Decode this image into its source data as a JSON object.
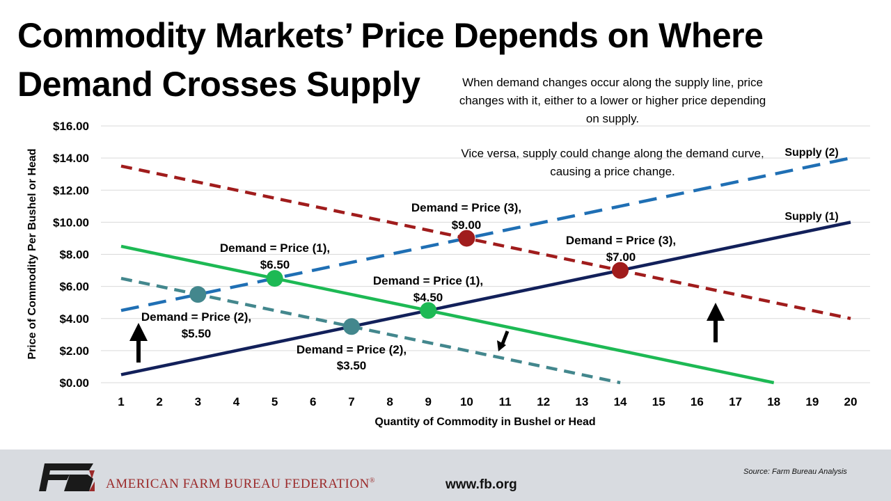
{
  "title": {
    "line1": "Commodity Markets’ Price Depends on Where",
    "line2": "Demand Crosses Supply"
  },
  "notes": {
    "note1": "When demand changes occur along the supply line, price changes with it, either to a lower or higher price depending on supply.",
    "note2": "Vice versa, supply could change along the demand curve, causing a price change."
  },
  "chart_data": {
    "type": "line",
    "xlabel": "Quantity of Commodity in Bushel or Head",
    "ylabel": "Price of Commodity Per Bushel or Head",
    "xlim": [
      1,
      20
    ],
    "ylim": [
      0,
      16
    ],
    "x_ticks": [
      "1",
      "2",
      "3",
      "4",
      "5",
      "6",
      "7",
      "8",
      "9",
      "10",
      "11",
      "12",
      "13",
      "14",
      "15",
      "16",
      "17",
      "18",
      "19",
      "20"
    ],
    "y_ticks": [
      "$0.00",
      "$2.00",
      "$4.00",
      "$6.00",
      "$8.00",
      "$10.00",
      "$12.00",
      "$14.00",
      "$16.00"
    ],
    "grid": "horizontal",
    "series": [
      {
        "name": "Supply (1)",
        "color": "#12205a",
        "dash": "solid",
        "points": [
          [
            1,
            0.5
          ],
          [
            20,
            10
          ]
        ]
      },
      {
        "name": "Supply (2)",
        "color": "#1f6fb4",
        "dash": "dashed",
        "points": [
          [
            1,
            4.5
          ],
          [
            20,
            14
          ]
        ]
      },
      {
        "name": "",
        "color": "#1db954",
        "dash": "solid",
        "points": [
          [
            1,
            8.5
          ],
          [
            18,
            0
          ]
        ]
      },
      {
        "name": "",
        "color": "#43878d",
        "dash": "dashed",
        "points": [
          [
            1,
            6.5
          ],
          [
            14,
            0
          ]
        ]
      },
      {
        "name": "",
        "color": "#a01c1c",
        "dash": "dashed",
        "points": [
          [
            1,
            13.5
          ],
          [
            20,
            4
          ]
        ]
      }
    ],
    "points": [
      {
        "x": 5,
        "y": 6.5,
        "color": "#1db954",
        "label_line1": "Demand = Price (1),",
        "label_line2": "$6.50"
      },
      {
        "x": 9,
        "y": 4.5,
        "color": "#1db954",
        "label_line1": "Demand = Price (1),",
        "label_line2": "$4.50"
      },
      {
        "x": 3,
        "y": 5.5,
        "color": "#43878d",
        "label_line1": "Demand = Price (2),",
        "label_line2": "$5.50"
      },
      {
        "x": 7,
        "y": 3.5,
        "color": "#43878d",
        "label_line1": "Demand = Price (2),",
        "label_line2": "$3.50"
      },
      {
        "x": 10,
        "y": 9.0,
        "color": "#a01c1c",
        "label_line1": "Demand = Price (3),",
        "label_line2": "$9.00"
      },
      {
        "x": 14,
        "y": 7.0,
        "color": "#a01c1c",
        "label_line1": "Demand = Price (3),",
        "label_line2": "$7.00"
      }
    ]
  },
  "footer": {
    "logo_icon": "fb-logo-icon",
    "organization": "AMERICAN FARM BUREAU FEDERATION",
    "registered_mark": "®",
    "url": "www.fb.org",
    "source": "Source: Farm Bureau Analysis"
  }
}
